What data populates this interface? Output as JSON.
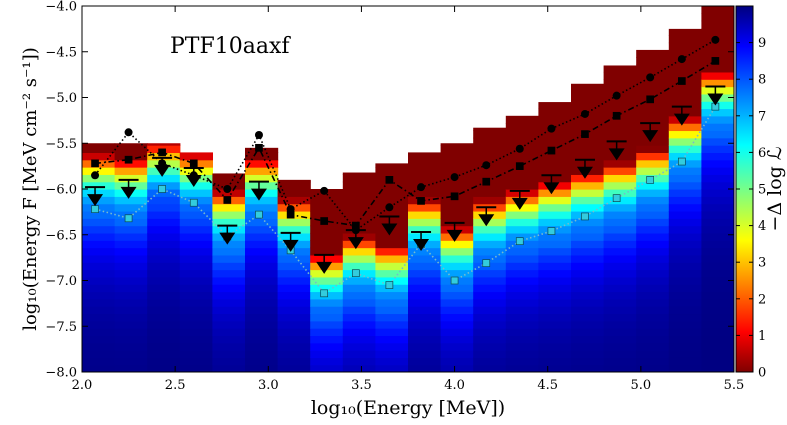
{
  "chart_data": {
    "type": "heatmap",
    "annotation": "PTF10aaxf",
    "xlabel": "log₁₀(Energy [MeV])",
    "ylabel": "log₁₀(Energy F [MeV cm⁻² s⁻¹])",
    "colorbar_label": "−Δ log ℒ",
    "xlim": [
      2.0,
      5.5
    ],
    "ylim": [
      -8.0,
      -4.0
    ],
    "clim": [
      0,
      10
    ],
    "x_ticks": [
      2.0,
      2.5,
      3.0,
      3.5,
      4.0,
      4.5,
      5.0,
      5.5
    ],
    "x_tick_labels": [
      "2.0",
      "2.5",
      "3.0",
      "3.5",
      "4.0",
      "4.5",
      "5.0",
      "5.5"
    ],
    "y_ticks": [
      -8.0,
      -7.5,
      -7.0,
      -6.5,
      -6.0,
      -5.5,
      -5.0,
      -4.5,
      -4.0
    ],
    "y_tick_labels": [
      "−8.0",
      "−7.5",
      "−7.0",
      "−6.5",
      "−6.0",
      "−5.5",
      "−5.0",
      "−4.5",
      "−4.0"
    ],
    "colorbar_ticks": [
      0,
      1,
      2,
      3,
      4,
      5,
      6,
      7,
      8,
      9
    ],
    "colorbar_tick_labels": [
      "0",
      "1",
      "2",
      "3",
      "4",
      "5",
      "6",
      "7",
      "8",
      "9"
    ],
    "colormap": "jet",
    "bins": {
      "edges": [
        2.0,
        2.175,
        2.35,
        2.525,
        2.7,
        2.875,
        3.05,
        3.225,
        3.4,
        3.575,
        3.75,
        3.925,
        4.1,
        4.275,
        4.45,
        4.625,
        4.8,
        4.975,
        5.15,
        5.325,
        5.5
      ],
      "map_top": [
        -5.5,
        -5.5,
        -5.5,
        -5.6,
        -5.83,
        -5.55,
        -5.9,
        -6.0,
        -5.82,
        -5.72,
        -5.6,
        -5.5,
        -5.33,
        -5.2,
        -5.05,
        -4.85,
        -4.65,
        -4.48,
        -4.25,
        -4.0
      ],
      "peak_loglike": [
        2.3,
        2.3,
        1.85,
        2.1,
        2.4,
        2.3,
        2.2,
        2.2,
        2.3,
        2.3,
        2.3,
        2.3,
        2.3,
        2.2,
        2.3,
        2.3,
        2.3,
        2.3,
        2.3,
        2.3
      ],
      "peak_y": [
        -6.3,
        -6.35,
        -6.2,
        -6.3,
        -6.7,
        -6.35,
        -6.8,
        -7.4,
        -7.2,
        -7.3,
        -6.8,
        -7.1,
        -6.8,
        -6.7,
        -6.6,
        -6.5,
        -6.4,
        -6.25,
        -5.9,
        -5.4
      ],
      "slope": [
        0.3,
        0.3,
        0.3,
        0.3,
        0.3,
        0.3,
        0.3,
        0.3,
        0.3,
        0.3,
        0.3,
        0.3,
        0.3,
        0.3,
        0.3,
        0.3,
        0.3,
        0.3,
        0.3,
        0.3
      ]
    },
    "series": [
      {
        "marker": "circle",
        "line": "dotted",
        "x": [
          2.07,
          2.25,
          2.43,
          2.6,
          2.78,
          2.95,
          3.12,
          3.3,
          3.47,
          3.65,
          3.82,
          4.0,
          4.17,
          4.35,
          4.52,
          4.7,
          4.87,
          5.05,
          5.22,
          5.4
        ],
        "y": [
          -5.85,
          -5.38,
          -5.72,
          -5.85,
          -6.0,
          -5.41,
          -6.22,
          -6.02,
          -6.45,
          -6.2,
          -5.98,
          -5.87,
          -5.74,
          -5.56,
          -5.34,
          -5.18,
          -4.98,
          -4.78,
          -4.58,
          -4.37
        ]
      },
      {
        "marker": "square",
        "line": "dashdot",
        "x": [
          2.07,
          2.25,
          2.43,
          2.6,
          2.78,
          2.95,
          3.12,
          3.3,
          3.47,
          3.65,
          3.82,
          4.0,
          4.17,
          4.35,
          4.52,
          4.7,
          4.87,
          5.05,
          5.22,
          5.4
        ],
        "y": [
          -5.72,
          -5.68,
          -5.6,
          -5.72,
          -6.12,
          -5.55,
          -6.28,
          -6.35,
          -6.4,
          -5.9,
          -6.13,
          -6.08,
          -5.92,
          -5.75,
          -5.58,
          -5.4,
          -5.2,
          -5.02,
          -4.82,
          -4.6
        ]
      },
      {
        "marker": "square",
        "line": "dotted",
        "color": "#33ccdd",
        "x": [
          2.07,
          2.25,
          2.43,
          2.6,
          2.78,
          2.95,
          3.12,
          3.3,
          3.47,
          3.65,
          3.82,
          4.0,
          4.17,
          4.35,
          4.52,
          4.7,
          4.87,
          5.05,
          5.22,
          5.4
        ],
        "y": [
          -6.22,
          -6.32,
          -6.0,
          -6.15,
          -6.52,
          -6.28,
          -6.67,
          -7.14,
          -6.92,
          -7.05,
          -6.6,
          -7.0,
          -6.81,
          -6.57,
          -6.46,
          -6.3,
          -6.1,
          -5.9,
          -5.7,
          -5.1
        ]
      }
    ],
    "upper_limits": {
      "marker": "down-triangle-with-bar",
      "x": [
        2.07,
        2.25,
        2.43,
        2.6,
        2.78,
        2.95,
        3.12,
        3.3,
        3.47,
        3.65,
        3.82,
        4.0,
        4.17,
        4.35,
        4.52,
        4.7,
        4.87,
        5.05,
        5.22,
        5.4
      ],
      "y": [
        -5.98,
        -5.9,
        -5.66,
        -5.77,
        -6.4,
        -5.92,
        -6.48,
        -6.72,
        -6.45,
        -6.3,
        -6.47,
        -6.37,
        -6.2,
        -6.02,
        -5.85,
        -5.68,
        -5.48,
        -5.28,
        -5.1,
        -4.88
      ]
    }
  }
}
